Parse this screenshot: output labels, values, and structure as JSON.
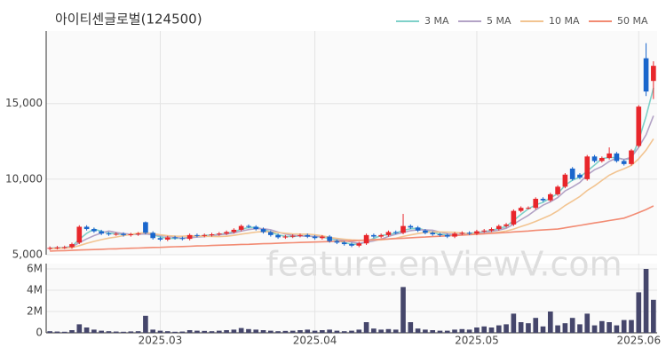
{
  "chart_data": {
    "type": "candlestick",
    "title": "아이티센글로벌(124500)",
    "watermark": "feature.enViewV.com",
    "xlim": [
      -0.5,
      82.5
    ],
    "xticks": [
      {
        "value": 15,
        "label": "2025.03"
      },
      {
        "value": 36,
        "label": "2025.04"
      },
      {
        "value": 58,
        "label": "2025.05"
      },
      {
        "value": 80,
        "label": "2025.06"
      }
    ],
    "ylim": [
      5000,
      19800
    ],
    "yticks": [
      {
        "value": 5000,
        "label": "5,000"
      },
      {
        "value": 10000,
        "label": "10,000"
      },
      {
        "value": 15000,
        "label": "15,000"
      }
    ],
    "grid": true,
    "legend": "top-right",
    "up_color": "#e8262b",
    "down_color": "#1a66cc",
    "open": [
      5400,
      5450,
      5480,
      5500,
      5800,
      6850,
      6700,
      6550,
      6400,
      6350,
      6380,
      6300,
      6350,
      7150,
      6450,
      6100,
      6000,
      6150,
      6100,
      6050,
      6300,
      6250,
      6300,
      6350,
      6400,
      6500,
      6650,
      6900,
      6850,
      6700,
      6500,
      6300,
      6150,
      6200,
      6250,
      6300,
      6200,
      6100,
      6200,
      5900,
      5800,
      5700,
      5600,
      5750,
      6300,
      6200,
      6300,
      6500,
      6450,
      6900,
      6800,
      6600,
      6450,
      6350,
      6300,
      6200,
      6400,
      6450,
      6400,
      6550,
      6600,
      6700,
      6900,
      7000,
      7900,
      8100,
      8100,
      8700,
      8600,
      9000,
      9500,
      10700,
      10300,
      10000,
      11500,
      11200,
      11400,
      11700,
      11200,
      11000,
      12200,
      18000,
      16500
    ],
    "high": [
      5550,
      5580,
      5600,
      5800,
      6950,
      6950,
      6800,
      6650,
      6500,
      6480,
      6480,
      6450,
      6500,
      7200,
      6550,
      6200,
      6250,
      6250,
      6200,
      6400,
      6400,
      6400,
      6450,
      6500,
      6600,
      6750,
      7000,
      7000,
      6950,
      6800,
      6600,
      6400,
      6300,
      6350,
      6400,
      6400,
      6300,
      6300,
      6300,
      6000,
      5900,
      5800,
      5850,
      6400,
      6400,
      6400,
      6600,
      6600,
      7700,
      7000,
      6900,
      6700,
      6550,
      6450,
      6400,
      6500,
      6550,
      6550,
      6650,
      6700,
      6800,
      7000,
      7100,
      8000,
      8200,
      8200,
      8800,
      8800,
      9100,
      9600,
      10400,
      10800,
      10400,
      11600,
      11600,
      11500,
      12100,
      11800,
      11300,
      12000,
      14900,
      19000,
      17800
    ],
    "low": [
      5300,
      5350,
      5380,
      5400,
      5700,
      6600,
      6450,
      6300,
      6250,
      6250,
      6200,
      6200,
      6250,
      6350,
      6000,
      5900,
      5900,
      6000,
      5950,
      5950,
      6150,
      6150,
      6200,
      6250,
      6300,
      6400,
      6550,
      6750,
      6600,
      6400,
      6200,
      6050,
      6050,
      6100,
      6150,
      6100,
      6000,
      6000,
      5800,
      5700,
      5600,
      5500,
      5500,
      5650,
      6100,
      6100,
      6200,
      6350,
      6350,
      6700,
      6500,
      6350,
      6250,
      6200,
      6100,
      6100,
      6300,
      6300,
      6300,
      6450,
      6500,
      6600,
      6800,
      6900,
      7800,
      8000,
      8000,
      8500,
      8500,
      8900,
      9400,
      9900,
      10000,
      9900,
      11100,
      11100,
      11300,
      11100,
      10900,
      10900,
      12100,
      15500,
      15300
    ],
    "close": [
      5450,
      5480,
      5500,
      5700,
      6850,
      6700,
      6550,
      6400,
      6350,
      6380,
      6300,
      6350,
      6400,
      6450,
      6100,
      6000,
      6150,
      6100,
      6050,
      6300,
      6250,
      6300,
      6350,
      6400,
      6500,
      6650,
      6900,
      6850,
      6700,
      6500,
      6300,
      6150,
      6200,
      6250,
      6300,
      6200,
      6100,
      6200,
      5900,
      5800,
      5700,
      5600,
      5750,
      6300,
      6200,
      6300,
      6500,
      6450,
      6900,
      6800,
      6600,
      6450,
      6350,
      6300,
      6200,
      6400,
      6450,
      6400,
      6550,
      6600,
      6700,
      6900,
      7000,
      7900,
      8100,
      8100,
      8700,
      8600,
      9000,
      9500,
      10300,
      10000,
      10100,
      11500,
      11200,
      11400,
      11700,
      11200,
      11000,
      11900,
      14800,
      15800,
      17500
    ],
    "series": [
      {
        "name": "3 MA",
        "color": "#7fd1c9",
        "values": [
          5430,
          5460,
          5477,
          5560,
          6017,
          6417,
          6700,
          6550,
          6433,
          6377,
          6343,
          6343,
          6350,
          6400,
          6317,
          6183,
          6083,
          6083,
          6100,
          6150,
          6200,
          6283,
          6300,
          6350,
          6417,
          6517,
          6683,
          6800,
          6817,
          6683,
          6500,
          6317,
          6217,
          6200,
          6250,
          6250,
          6200,
          6167,
          6067,
          5967,
          5800,
          5700,
          5683,
          5883,
          6083,
          6267,
          6333,
          6417,
          6617,
          6717,
          6767,
          6617,
          6467,
          6367,
          6283,
          6300,
          6350,
          6417,
          6467,
          6517,
          6617,
          6733,
          6867,
          7267,
          7667,
          8033,
          8300,
          8467,
          8767,
          9033,
          9600,
          9933,
          10133,
          10533,
          10933,
          11367,
          11433,
          11433,
          11300,
          11367,
          12567,
          14167,
          16033
        ]
      },
      {
        "name": "5 MA",
        "color": "#b3a3c6",
        "values": [
          5420,
          5440,
          5460,
          5520,
          5796,
          6046,
          6260,
          6440,
          6570,
          6476,
          6396,
          6356,
          6356,
          6376,
          6320,
          6260,
          6220,
          6160,
          6080,
          6120,
          6170,
          6200,
          6250,
          6320,
          6360,
          6440,
          6560,
          6660,
          6720,
          6720,
          6650,
          6500,
          6370,
          6280,
          6240,
          6220,
          6210,
          6210,
          6140,
          6040,
          5940,
          5840,
          5750,
          5830,
          5910,
          6030,
          6210,
          6350,
          6470,
          6590,
          6650,
          6640,
          6620,
          6500,
          6380,
          6340,
          6340,
          6350,
          6400,
          6480,
          6540,
          6630,
          6750,
          7020,
          7320,
          7600,
          7960,
          8280,
          8500,
          8780,
          9220,
          9480,
          9780,
          10280,
          10620,
          10840,
          11180,
          11400,
          11300,
          11440,
          12120,
          12940,
          14200
        ]
      },
      {
        "name": "10 MA",
        "color": "#f2c491",
        "values": [
          5400,
          5420,
          5440,
          5470,
          5600,
          5750,
          5880,
          6000,
          6100,
          6170,
          6260,
          6340,
          6420,
          6460,
          6390,
          6320,
          6260,
          6230,
          6220,
          6250,
          6240,
          6220,
          6210,
          6200,
          6220,
          6280,
          6360,
          6430,
          6500,
          6530,
          6510,
          6470,
          6420,
          6380,
          6360,
          6360,
          6320,
          6250,
          6150,
          6080,
          6030,
          5980,
          5960,
          5970,
          5970,
          5980,
          6040,
          6090,
          6210,
          6310,
          6400,
          6480,
          6510,
          6510,
          6490,
          6480,
          6440,
          6400,
          6380,
          6390,
          6440,
          6490,
          6560,
          6700,
          6860,
          7020,
          7200,
          7410,
          7620,
          7900,
          8260,
          8550,
          8850,
          9250,
          9560,
          9910,
          10260,
          10500,
          10690,
          10910,
          11350,
          11920,
          12670
        ]
      },
      {
        "name": "50 MA",
        "color": "#f28b73",
        "values": [
          5240,
          5260,
          5270,
          5290,
          5310,
          5330,
          5340,
          5360,
          5380,
          5390,
          5410,
          5430,
          5440,
          5460,
          5480,
          5490,
          5510,
          5530,
          5540,
          5560,
          5580,
          5590,
          5610,
          5630,
          5640,
          5660,
          5680,
          5690,
          5710,
          5730,
          5740,
          5760,
          5780,
          5790,
          5810,
          5830,
          5840,
          5860,
          5870,
          5890,
          5900,
          5920,
          5940,
          5970,
          5990,
          6020,
          6040,
          6070,
          6090,
          6120,
          6150,
          6170,
          6200,
          6220,
          6250,
          6270,
          6300,
          6320,
          6350,
          6380,
          6410,
          6440,
          6470,
          6510,
          6540,
          6570,
          6610,
          6640,
          6670,
          6700,
          6780,
          6860,
          6940,
          7020,
          7100,
          7180,
          7260,
          7340,
          7420,
          7600,
          7790,
          7990,
          8230
        ]
      }
    ],
    "volume": {
      "color": "#45466b",
      "ylim": [
        0,
        6500000
      ],
      "yticks": [
        0,
        {
          "value": 2000000,
          "label": "2M"
        },
        {
          "value": 4000000,
          "label": "4M"
        },
        {
          "value": 6000000,
          "label": "6M"
        }
      ],
      "values": [
        150000,
        120000,
        100000,
        250000,
        800000,
        500000,
        300000,
        200000,
        150000,
        120000,
        100000,
        130000,
        150000,
        1600000,
        300000,
        200000,
        150000,
        100000,
        120000,
        250000,
        200000,
        180000,
        150000,
        200000,
        250000,
        300000,
        450000,
        350000,
        300000,
        250000,
        200000,
        150000,
        180000,
        200000,
        250000,
        300000,
        200000,
        250000,
        300000,
        200000,
        150000,
        200000,
        300000,
        1000000,
        400000,
        300000,
        350000,
        300000,
        4300000,
        1000000,
        400000,
        300000,
        250000,
        200000,
        200000,
        300000,
        350000,
        300000,
        500000,
        600000,
        500000,
        700000,
        800000,
        1800000,
        1000000,
        900000,
        1400000,
        600000,
        2000000,
        700000,
        900000,
        1400000,
        800000,
        1800000,
        700000,
        1100000,
        1000000,
        700000,
        1200000,
        1200000,
        3800000,
        6000000,
        3100000
      ]
    }
  }
}
